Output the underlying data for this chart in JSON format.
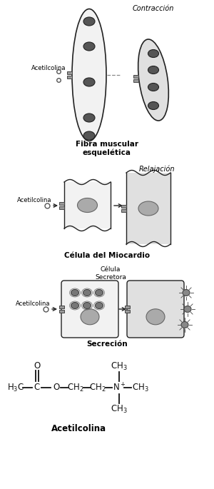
{
  "bg_color": "#ffffff",
  "text_color": "#000000",
  "title": "Acetilcolina",
  "section1_label": "Fibra muscular\nesquelética",
  "section2_label": "Célula del Miocardio",
  "section3_label": "Secreción",
  "contraccion_label": "Contracción",
  "relajacion_label": "Relajación",
  "celula_secretora_label": "Célula\nSecretora",
  "acetilcolina_label": "Acetilcolina",
  "cell_fill_light": "#f2f2f2",
  "cell_fill": "#e0e0e0",
  "cell_edge": "#222222",
  "nucleus_fill": "#555555",
  "nucleus_fill2": "#aaaaaa",
  "vesicle_fill": "#888888",
  "receptor_fill": "#999999"
}
